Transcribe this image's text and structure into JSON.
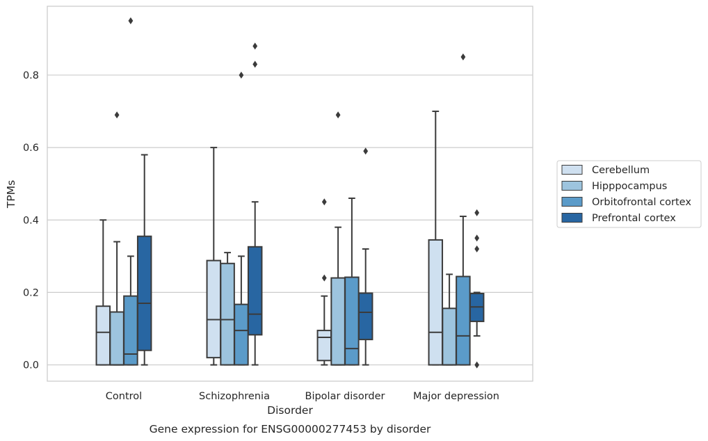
{
  "chart_data": {
    "type": "boxplot",
    "caption": "Gene expression for ENSG00000277453 by disorder",
    "xlabel": "Disorder",
    "ylabel": "TPMs",
    "ylim": [
      -0.045,
      0.99
    ],
    "yticks": [
      0.0,
      0.2,
      0.4,
      0.6,
      0.8
    ],
    "ytick_labels": [
      "0.0",
      "0.2",
      "0.4",
      "0.6",
      "0.8"
    ],
    "grid": "horizontal",
    "legend_position": "right",
    "categories": [
      "Control",
      "Schizophrenia",
      "Bipolar disorder",
      "Major depression"
    ],
    "series": [
      {
        "name": "Cerebellum",
        "color": "#cfe0f0",
        "boxes": [
          {
            "q1": 0.0,
            "median": 0.09,
            "q3": 0.162,
            "whisker_low": 0.0,
            "whisker_high": 0.4,
            "outliers": []
          },
          {
            "q1": 0.02,
            "median": 0.125,
            "q3": 0.288,
            "whisker_low": 0.0,
            "whisker_high": 0.6,
            "outliers": []
          },
          {
            "q1": 0.012,
            "median": 0.076,
            "q3": 0.095,
            "whisker_low": 0.0,
            "whisker_high": 0.19,
            "outliers": [
              0.24,
              0.45
            ]
          },
          {
            "q1": 0.0,
            "median": 0.09,
            "q3": 0.345,
            "whisker_low": 0.0,
            "whisker_high": 0.7,
            "outliers": []
          }
        ]
      },
      {
        "name": "Hipppocampus",
        "color": "#9dc4de",
        "boxes": [
          {
            "q1": 0.0,
            "median": 0.0,
            "q3": 0.146,
            "whisker_low": 0.0,
            "whisker_high": 0.34,
            "outliers": [
              0.69
            ]
          },
          {
            "q1": 0.0,
            "median": 0.125,
            "q3": 0.28,
            "whisker_low": 0.0,
            "whisker_high": 0.31,
            "outliers": []
          },
          {
            "q1": 0.0,
            "median": 0.0,
            "q3": 0.24,
            "whisker_low": 0.0,
            "whisker_high": 0.38,
            "outliers": [
              0.69
            ]
          },
          {
            "q1": 0.0,
            "median": 0.0,
            "q3": 0.156,
            "whisker_low": 0.0,
            "whisker_high": 0.25,
            "outliers": []
          }
        ]
      },
      {
        "name": "Orbitofrontal cortex",
        "color": "#5b9bc9",
        "boxes": [
          {
            "q1": 0.0,
            "median": 0.03,
            "q3": 0.19,
            "whisker_low": 0.0,
            "whisker_high": 0.3,
            "outliers": [
              0.95
            ]
          },
          {
            "q1": 0.0,
            "median": 0.095,
            "q3": 0.167,
            "whisker_low": 0.0,
            "whisker_high": 0.3,
            "outliers": [
              0.8
            ]
          },
          {
            "q1": 0.0,
            "median": 0.045,
            "q3": 0.242,
            "whisker_low": 0.0,
            "whisker_high": 0.46,
            "outliers": []
          },
          {
            "q1": 0.0,
            "median": 0.08,
            "q3": 0.244,
            "whisker_low": 0.0,
            "whisker_high": 0.41,
            "outliers": [
              0.85
            ]
          }
        ]
      },
      {
        "name": "Prefrontal cortex",
        "color": "#2866a2",
        "boxes": [
          {
            "q1": 0.04,
            "median": 0.17,
            "q3": 0.355,
            "whisker_low": 0.0,
            "whisker_high": 0.58,
            "outliers": []
          },
          {
            "q1": 0.083,
            "median": 0.14,
            "q3": 0.326,
            "whisker_low": 0.0,
            "whisker_high": 0.45,
            "outliers": [
              0.83,
              0.88
            ]
          },
          {
            "q1": 0.07,
            "median": 0.145,
            "q3": 0.198,
            "whisker_low": 0.0,
            "whisker_high": 0.32,
            "outliers": [
              0.59
            ]
          },
          {
            "q1": 0.12,
            "median": 0.16,
            "q3": 0.197,
            "whisker_low": 0.08,
            "whisker_high": 0.2,
            "outliers": [
              0.0,
              0.32,
              0.35,
              0.42
            ]
          }
        ]
      }
    ],
    "colors": {
      "grid": "#cccccc",
      "frame": "#cccccc",
      "box_edge": "#3b3b3b",
      "legend_border": "#cccccc",
      "text": "#262626"
    }
  }
}
